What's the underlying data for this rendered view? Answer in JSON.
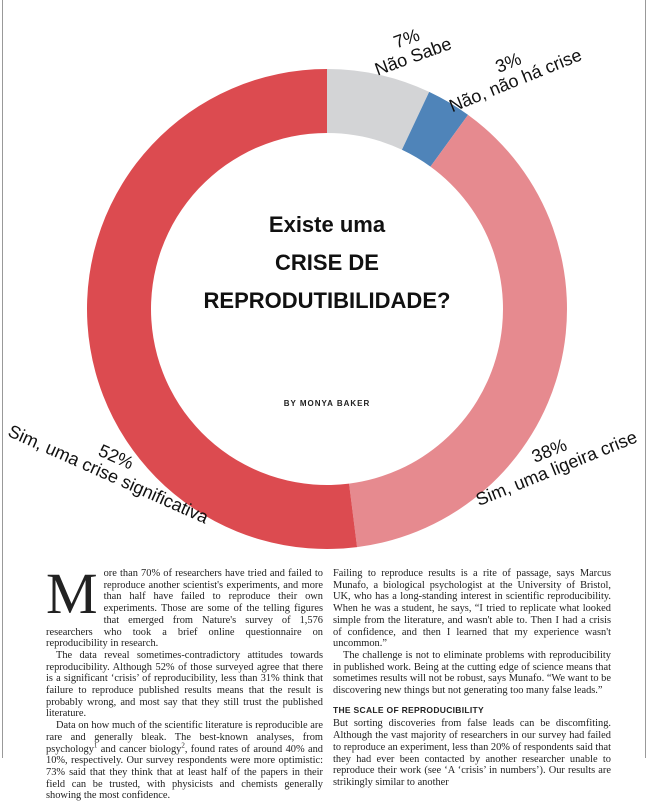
{
  "chart_data": {
    "type": "pie",
    "title": [
      "Existe uma",
      "CRISE DE",
      "REPRODUTIBILIDADE?"
    ],
    "byline": "BY MONYA BAKER",
    "categories": [
      "Não Sabe",
      "Não, não há crise",
      "Sim, uma ligeira crise",
      "Sim, uma crise significativa"
    ],
    "values": [
      7,
      3,
      38,
      52
    ],
    "value_labels": [
      "7%",
      "3%",
      "38%",
      "52%"
    ],
    "colors": [
      "#d3d4d6",
      "#4f84b9",
      "#e68a8f",
      "#dc4b50"
    ]
  },
  "article": {
    "drop_cap": "M",
    "left": [
      [
        "ore than 70% of researchers have tried and failed to reproduce another scientist's experiments, and more than half have failed to reproduce their own experiments. Those are some of the telling figures that emerged from Nature's survey of 1,576 researchers who took a brief online questionnaire on reproducibility in research."
      ],
      [
        "The data reveal sometimes-contradictory attitudes towards reproducibility. Although 52% of those surveyed agree that there is a significant ‘crisis’ of reproducibility, less than 31% think that failure to reproduce published results means that the result is probably wrong, and most say that they still trust the published literature."
      ],
      [
        "Data on how much of the scientific literature is reproducible are rare and generally bleak. The best-known analyses, from psychology",
        "1",
        " and cancer biology",
        "2",
        ", found rates of around 40% and 10%, respectively. Our survey respondents were more optimistic: 73% said that they think that at least half of the papers in their field can be trusted, with physicists and chemists generally showing the most confidence."
      ]
    ],
    "right": [
      "Failing to reproduce results is a rite of passage, says Marcus Munafo, a biological psychologist at the University of Bristol, UK, who has a long-standing interest in scientific reproducibility. When he was a student, he says, “I tried to replicate what looked simple from the literature, and wasn't able to. Then I had a crisis of confidence, and then I learned that my experience wasn't uncommon.”",
      "The challenge is not to eliminate problems with reproducibility in published work. Being at the cutting edge of science means that sometimes results will not be robust, says Munafo. “We want to be discovering new things but not generating too many false leads.”"
    ],
    "heading": "THE SCALE OF REPRODUCIBILITY",
    "after_heading": "But sorting discoveries from false leads can be discomfiting. Although the vast majority of researchers in our survey had failed to reproduce an experiment, less than 20% of respondents said that they had ever been contacted by another researcher unable to reproduce their work (see ‘A ‘crisis’ in numbers’). Our results are strikingly similar to another"
  }
}
